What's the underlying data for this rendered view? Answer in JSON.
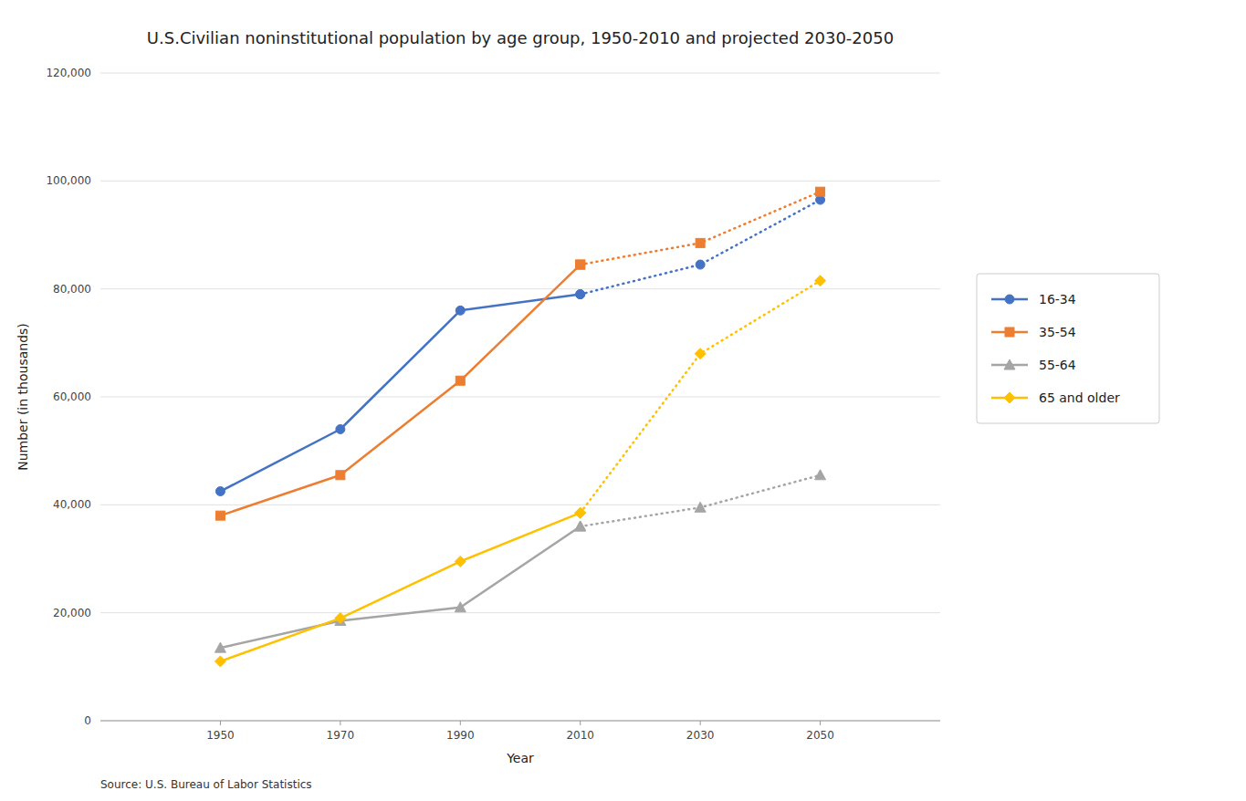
{
  "chart_data": {
    "type": "line",
    "title": "U.S.Civilian noninstitutional population by age group, 1950-2010 and projected 2030-2050",
    "x_label": "Year",
    "y_label": "Number (in thousands)",
    "annotations": [
      "Source: U.S. Bureau of Labor Statistics"
    ],
    "x": [
      1950,
      1970,
      1990,
      2010,
      2030,
      2050
    ],
    "series": [
      {
        "name": "16-34",
        "color": "#4472C4",
        "marker": "circle",
        "line_style": "solid",
        "values": [
          42500,
          54000,
          76000,
          79000,
          null,
          null
        ]
      },
      {
        "color": "#4472C4",
        "marker": "circle",
        "line_style": "dotted",
        "values": [
          null,
          null,
          null,
          79000,
          84500,
          96500
        ]
      },
      {
        "name": "35-54",
        "color": "#ED7D31",
        "marker": "square",
        "line_style": "solid",
        "values": [
          38000,
          45500,
          63000,
          84500,
          null,
          null
        ]
      },
      {
        "color": "#ED7D31",
        "marker": "square",
        "line_style": "dotted",
        "values": [
          null,
          null,
          null,
          84500,
          88500,
          98000
        ]
      },
      {
        "name": "55-64",
        "color": "#A5A5A5",
        "marker": "triangle",
        "line_style": "solid",
        "values": [
          13500,
          18500,
          21000,
          36000,
          null,
          null
        ]
      },
      {
        "color": "#A5A5A5",
        "marker": "triangle",
        "line_style": "dotted",
        "values": [
          null,
          null,
          null,
          36000,
          39500,
          45500
        ]
      },
      {
        "name": "65 and older",
        "color": "#FFC000",
        "marker": "diamond",
        "line_style": "solid",
        "values": [
          11000,
          19000,
          29500,
          38500,
          null,
          null
        ]
      },
      {
        "color": "#FFC000",
        "marker": "diamond",
        "line_style": "dotted",
        "values": [
          null,
          null,
          null,
          38500,
          68000,
          81500
        ]
      }
    ],
    "xlim": [
      1930,
      2070
    ],
    "ylim": [
      0,
      120000
    ],
    "xticks": [
      1950,
      1970,
      1990,
      2010,
      2030,
      2050
    ],
    "yticks": [
      0,
      {
        "value": 20000,
        "label": "20,000"
      },
      {
        "value": 40000,
        "label": "40,000"
      },
      {
        "value": 60000,
        "label": "60,000"
      },
      {
        "value": 80000,
        "label": "80,000"
      },
      {
        "value": 100000,
        "label": "100,000"
      },
      {
        "value": 120000,
        "label": "120,000"
      }
    ],
    "grid": true,
    "legend": "right"
  }
}
